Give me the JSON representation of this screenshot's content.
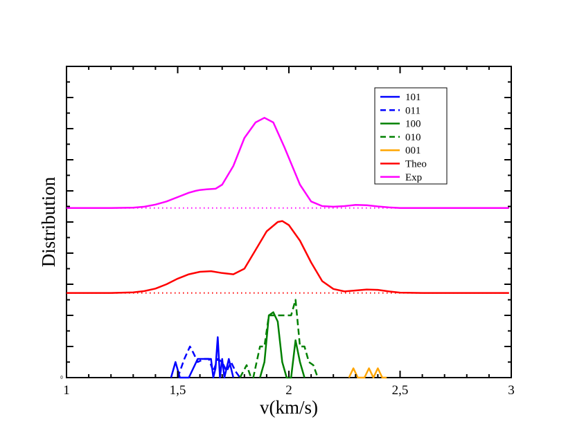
{
  "chart_data": {
    "type": "line",
    "title": "",
    "xlabel": "v(km/s)",
    "ylabel": "Distribution",
    "xlim": [
      1,
      3
    ],
    "ylim": [
      0,
      1
    ],
    "x_ticks": [
      1,
      1.5,
      2,
      2.5,
      3
    ],
    "x_tick_labels": [
      "1",
      "1,5",
      "2",
      "2,5",
      "3"
    ],
    "y_zero_label": "0",
    "grid": false,
    "legend_position": "top-right",
    "legend": [
      {
        "label": "101",
        "color": "#0000ff",
        "dash": "solid"
      },
      {
        "label": "011",
        "color": "#0000ff",
        "dash": "dashed"
      },
      {
        "label": "100",
        "color": "#008000",
        "dash": "solid"
      },
      {
        "label": "010",
        "color": "#008000",
        "dash": "dashed"
      },
      {
        "label": "001",
        "color": "#ffa500",
        "dash": "solid"
      },
      {
        "label": "Theo",
        "color": "#ff0000",
        "dash": "solid"
      },
      {
        "label": "Exp",
        "color": "#ff00ff",
        "dash": "solid"
      }
    ],
    "baselines": [
      {
        "name": "Theo baseline",
        "y": 0.272,
        "color": "#ff0000"
      },
      {
        "name": "Exp baseline",
        "y": 0.545,
        "color": "#ff00ff"
      }
    ],
    "series": [
      {
        "name": "101",
        "color": "#0000ff",
        "dash": "solid",
        "x": [
          1.47,
          1.49,
          1.51,
          1.53,
          1.55,
          1.57,
          1.59,
          1.61,
          1.63,
          1.65,
          1.66,
          1.67,
          1.68,
          1.69,
          1.7,
          1.71,
          1.72,
          1.73,
          1.74,
          1.75
        ],
        "y": [
          0.0,
          0.05,
          0.0,
          0.0,
          0.0,
          0.03,
          0.06,
          0.06,
          0.06,
          0.06,
          0.0,
          0.03,
          0.13,
          0.0,
          0.06,
          0.0,
          0.03,
          0.06,
          0.03,
          0.0
        ]
      },
      {
        "name": "011",
        "color": "#0000ff",
        "dash": "dashed",
        "x": [
          1.5,
          1.53,
          1.555,
          1.57,
          1.59,
          1.62,
          1.64,
          1.66,
          1.68,
          1.7,
          1.72,
          1.74,
          1.76,
          1.78
        ],
        "y": [
          0.0,
          0.06,
          0.1,
          0.08,
          0.05,
          0.06,
          0.06,
          0.02,
          0.06,
          0.05,
          0.02,
          0.05,
          0.02,
          0.0
        ]
      },
      {
        "name": "100",
        "color": "#008000",
        "dash": "solid",
        "x": [
          1.87,
          1.89,
          1.91,
          1.93,
          1.95,
          1.97,
          1.99,
          2.01,
          2.03,
          2.05,
          2.07
        ],
        "y": [
          0.0,
          0.05,
          0.2,
          0.21,
          0.18,
          0.05,
          0.0,
          0.0,
          0.12,
          0.05,
          0.0
        ]
      },
      {
        "name": "010",
        "color": "#008000",
        "dash": "dashed",
        "x": [
          1.78,
          1.81,
          1.83,
          1.84,
          1.87,
          1.89,
          1.91,
          1.93,
          1.95,
          1.97,
          1.99,
          2.01,
          2.03,
          2.05,
          2.07,
          2.09,
          2.11,
          2.13
        ],
        "y": [
          0.0,
          0.04,
          0.0,
          0.0,
          0.1,
          0.1,
          0.2,
          0.2,
          0.2,
          0.2,
          0.2,
          0.2,
          0.25,
          0.1,
          0.1,
          0.05,
          0.04,
          0.0
        ]
      },
      {
        "name": "001",
        "color": "#ffa500",
        "dash": "solid",
        "x": [
          2.27,
          2.29,
          2.31,
          2.34,
          2.36,
          2.38,
          2.4,
          2.42,
          2.44
        ],
        "y": [
          0.0,
          0.03,
          0.0,
          0.0,
          0.03,
          0.0,
          0.03,
          0.0,
          0.0
        ]
      },
      {
        "name": "Theo",
        "color": "#ff0000",
        "dash": "solid",
        "x": [
          1.0,
          1.2,
          1.3,
          1.35,
          1.4,
          1.45,
          1.5,
          1.55,
          1.6,
          1.65,
          1.7,
          1.75,
          1.8,
          1.85,
          1.9,
          1.95,
          1.97,
          2.0,
          2.05,
          2.1,
          2.15,
          2.2,
          2.25,
          2.3,
          2.35,
          2.4,
          2.45,
          2.5,
          2.6,
          2.7,
          2.8,
          2.9,
          2.99
        ],
        "y": [
          0.272,
          0.272,
          0.274,
          0.278,
          0.286,
          0.3,
          0.318,
          0.332,
          0.34,
          0.342,
          0.336,
          0.332,
          0.35,
          0.41,
          0.47,
          0.5,
          0.503,
          0.49,
          0.44,
          0.37,
          0.31,
          0.285,
          0.277,
          0.28,
          0.283,
          0.282,
          0.277,
          0.273,
          0.272,
          0.272,
          0.272,
          0.272,
          0.272
        ]
      },
      {
        "name": "Exp",
        "color": "#ff00ff",
        "dash": "solid",
        "x": [
          1.0,
          1.2,
          1.3,
          1.35,
          1.4,
          1.45,
          1.5,
          1.55,
          1.58,
          1.6,
          1.63,
          1.67,
          1.7,
          1.75,
          1.8,
          1.85,
          1.89,
          1.93,
          1.98,
          2.05,
          2.1,
          2.15,
          2.2,
          2.25,
          2.3,
          2.35,
          2.4,
          2.45,
          2.5,
          2.6,
          2.8,
          2.99
        ],
        "y": [
          0.545,
          0.545,
          0.546,
          0.549,
          0.556,
          0.566,
          0.58,
          0.594,
          0.6,
          0.603,
          0.605,
          0.607,
          0.62,
          0.68,
          0.77,
          0.82,
          0.835,
          0.82,
          0.74,
          0.62,
          0.566,
          0.551,
          0.549,
          0.551,
          0.555,
          0.554,
          0.55,
          0.547,
          0.545,
          0.545,
          0.545,
          0.545
        ]
      }
    ]
  }
}
